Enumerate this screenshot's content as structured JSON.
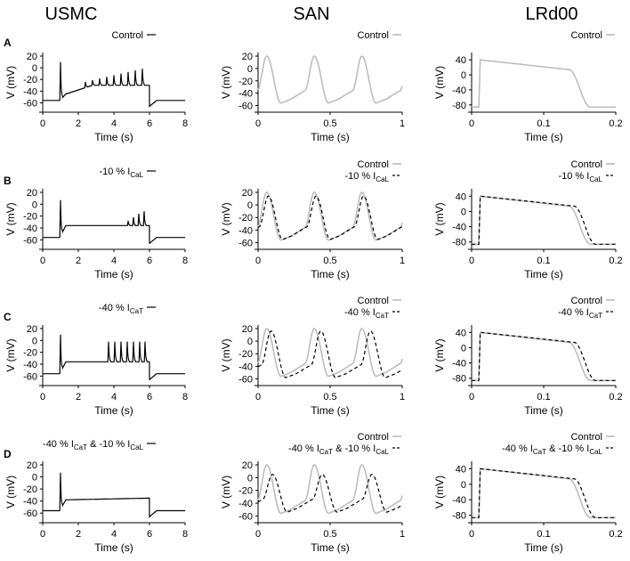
{
  "column_titles": [
    "USMC",
    "SAN",
    "LRd00"
  ],
  "row_labels": [
    "A",
    "B",
    "C",
    "D"
  ],
  "colors": {
    "control": "#bdbdbd",
    "treated": "#000000"
  },
  "chart_data": [
    {
      "id": "A-USMC",
      "type": "line",
      "xlabel": "Time (s)",
      "ylabel": "V (mV)",
      "xlim": [
        0,
        8
      ],
      "ylim": [
        -70,
        20
      ],
      "xticks": [
        "0",
        "2",
        "4",
        "6",
        "8"
      ],
      "yticks": [
        "20",
        "0",
        "-20",
        "-40",
        "-60"
      ],
      "legend": [
        {
          "text": "Control",
          "style": "black-solid"
        }
      ],
      "series": [
        {
          "style": "black-solid",
          "model": "usmc",
          "variant": "control"
        }
      ]
    },
    {
      "id": "A-SAN",
      "type": "line",
      "xlabel": "Time (s)",
      "ylabel": "V (mV)",
      "xlim": [
        0,
        1
      ],
      "ylim": [
        -65,
        20
      ],
      "xticks": [
        "0",
        "0.5",
        "1"
      ],
      "yticks": [
        "20",
        "0",
        "-20",
        "-40",
        "-60"
      ],
      "legend": [
        {
          "text": "Control",
          "style": "gray-solid"
        }
      ],
      "series": [
        {
          "style": "gray-solid",
          "model": "san",
          "variant": "control"
        }
      ]
    },
    {
      "id": "A-LRd00",
      "type": "line",
      "xlabel": "Time (s)",
      "ylabel": "V (mV)",
      "xlim": [
        0,
        0.2
      ],
      "ylim": [
        -90,
        50
      ],
      "xticks": [
        "0",
        "0.1",
        "0.2"
      ],
      "yticks": [
        "40",
        "0",
        "-40",
        "-80"
      ],
      "legend": [
        {
          "text": "Control",
          "style": "gray-solid"
        }
      ],
      "series": [
        {
          "style": "gray-solid",
          "model": "lrd",
          "variant": "control"
        }
      ]
    },
    {
      "id": "B-USMC",
      "type": "line",
      "xlabel": "Time (s)",
      "ylabel": "V (mV)",
      "xlim": [
        0,
        8
      ],
      "ylim": [
        -70,
        20
      ],
      "xticks": [
        "0",
        "2",
        "4",
        "6",
        "8"
      ],
      "yticks": [
        "20",
        "0",
        "-20",
        "-40",
        "-60"
      ],
      "legend": [
        {
          "text": "-10 % I",
          "sub": "CaL",
          "style": "black-solid"
        }
      ],
      "series": [
        {
          "style": "black-solid",
          "model": "usmc",
          "variant": "cal10"
        }
      ]
    },
    {
      "id": "B-SAN",
      "type": "line",
      "xlabel": "Time (s)",
      "ylabel": "V (mV)",
      "xlim": [
        0,
        1
      ],
      "ylim": [
        -65,
        20
      ],
      "xticks": [
        "0",
        "0.5",
        "1"
      ],
      "yticks": [
        "20",
        "0",
        "-20",
        "-40",
        "-60"
      ],
      "legend": [
        {
          "text": "Control",
          "style": "gray-solid"
        },
        {
          "text": "-10 % I",
          "sub": "CaL",
          "style": "black-dash"
        }
      ],
      "series": [
        {
          "style": "gray-solid",
          "model": "san",
          "variant": "control"
        },
        {
          "style": "black-dash",
          "model": "san",
          "variant": "cal10"
        }
      ]
    },
    {
      "id": "B-LRd00",
      "type": "line",
      "xlabel": "Time (s)",
      "ylabel": "V (mV)",
      "xlim": [
        0,
        0.2
      ],
      "ylim": [
        -90,
        50
      ],
      "xticks": [
        "0",
        "0.1",
        "0.2"
      ],
      "yticks": [
        "40",
        "0",
        "-40",
        "-80"
      ],
      "legend": [
        {
          "text": "Control",
          "style": "gray-solid"
        },
        {
          "text": "-10 % I",
          "sub": "CaL",
          "style": "black-dash"
        }
      ],
      "series": [
        {
          "style": "gray-solid",
          "model": "lrd",
          "variant": "control"
        },
        {
          "style": "black-dash",
          "model": "lrd",
          "variant": "cal10"
        }
      ]
    },
    {
      "id": "C-USMC",
      "type": "line",
      "xlabel": "Time (s)",
      "ylabel": "V (mV)",
      "xlim": [
        0,
        8
      ],
      "ylim": [
        -70,
        20
      ],
      "xticks": [
        "0",
        "2",
        "4",
        "6",
        "8"
      ],
      "yticks": [
        "20",
        "0",
        "-20",
        "-40",
        "-60"
      ],
      "legend": [
        {
          "text": "-40 % I",
          "sub": "CaT",
          "style": "black-solid"
        }
      ],
      "series": [
        {
          "style": "black-solid",
          "model": "usmc",
          "variant": "cat40"
        }
      ]
    },
    {
      "id": "C-SAN",
      "type": "line",
      "xlabel": "Time (s)",
      "ylabel": "V (mV)",
      "xlim": [
        0,
        1
      ],
      "ylim": [
        -65,
        20
      ],
      "xticks": [
        "0",
        "0.5",
        "1"
      ],
      "yticks": [
        "20",
        "0",
        "-20",
        "-40",
        "-60"
      ],
      "legend": [
        {
          "text": "Control",
          "style": "gray-solid"
        },
        {
          "text": "-40 % I",
          "sub": "CaT",
          "style": "black-dash"
        }
      ],
      "series": [
        {
          "style": "gray-solid",
          "model": "san",
          "variant": "control"
        },
        {
          "style": "black-dash",
          "model": "san",
          "variant": "cat40"
        }
      ]
    },
    {
      "id": "C-LRd00",
      "type": "line",
      "xlabel": "Time (s)",
      "ylabel": "V (mV)",
      "xlim": [
        0,
        0.2
      ],
      "ylim": [
        -90,
        50
      ],
      "xticks": [
        "0",
        "0.1",
        "0.2"
      ],
      "yticks": [
        "40",
        "0",
        "-40",
        "-80"
      ],
      "legend": [
        {
          "text": "Control",
          "style": "gray-solid"
        },
        {
          "text": "-40 % I",
          "sub": "CaT",
          "style": "black-dash"
        }
      ],
      "series": [
        {
          "style": "gray-solid",
          "model": "lrd",
          "variant": "control"
        },
        {
          "style": "black-dash",
          "model": "lrd",
          "variant": "cat40"
        }
      ]
    },
    {
      "id": "D-USMC",
      "type": "line",
      "xlabel": "Time (s)",
      "ylabel": "V (mV)",
      "xlim": [
        0,
        8
      ],
      "ylim": [
        -70,
        20
      ],
      "xticks": [
        "0",
        "2",
        "4",
        "6",
        "8"
      ],
      "yticks": [
        "20",
        "0",
        "-20",
        "-40",
        "-60"
      ],
      "legend": [
        {
          "text": "-40 % I",
          "sub": "CaT",
          "text2": " & -10 % I",
          "sub2": "CaL",
          "style": "black-solid"
        }
      ],
      "series": [
        {
          "style": "black-solid",
          "model": "usmc",
          "variant": "both"
        }
      ]
    },
    {
      "id": "D-SAN",
      "type": "line",
      "xlabel": "Time (s)",
      "ylabel": "V (mV)",
      "xlim": [
        0,
        1
      ],
      "ylim": [
        -65,
        20
      ],
      "xticks": [
        "0",
        "0.5",
        "1"
      ],
      "yticks": [
        "20",
        "0",
        "-20",
        "-40",
        "-60"
      ],
      "legend": [
        {
          "text": "Control",
          "style": "gray-solid"
        },
        {
          "text": "-40 % I",
          "sub": "CaT",
          "text2": " & -10 % I",
          "sub2": "CaL",
          "style": "black-dash"
        }
      ],
      "series": [
        {
          "style": "gray-solid",
          "model": "san",
          "variant": "control"
        },
        {
          "style": "black-dash",
          "model": "san",
          "variant": "both"
        }
      ]
    },
    {
      "id": "D-LRd00",
      "type": "line",
      "xlabel": "Time (s)",
      "ylabel": "V (mV)",
      "xlim": [
        0,
        0.2
      ],
      "ylim": [
        -90,
        50
      ],
      "xticks": [
        "0",
        "0.1",
        "0.2"
      ],
      "yticks": [
        "40",
        "0",
        "-40",
        "-80"
      ],
      "legend": [
        {
          "text": "Control",
          "style": "gray-solid"
        },
        {
          "text": "-40 % I",
          "sub": "CaT",
          "text2": " & -10 % I",
          "sub2": "CaL",
          "style": "black-dash"
        }
      ],
      "series": [
        {
          "style": "gray-solid",
          "model": "lrd",
          "variant": "control"
        },
        {
          "style": "black-dash",
          "model": "lrd",
          "variant": "both"
        }
      ]
    }
  ]
}
